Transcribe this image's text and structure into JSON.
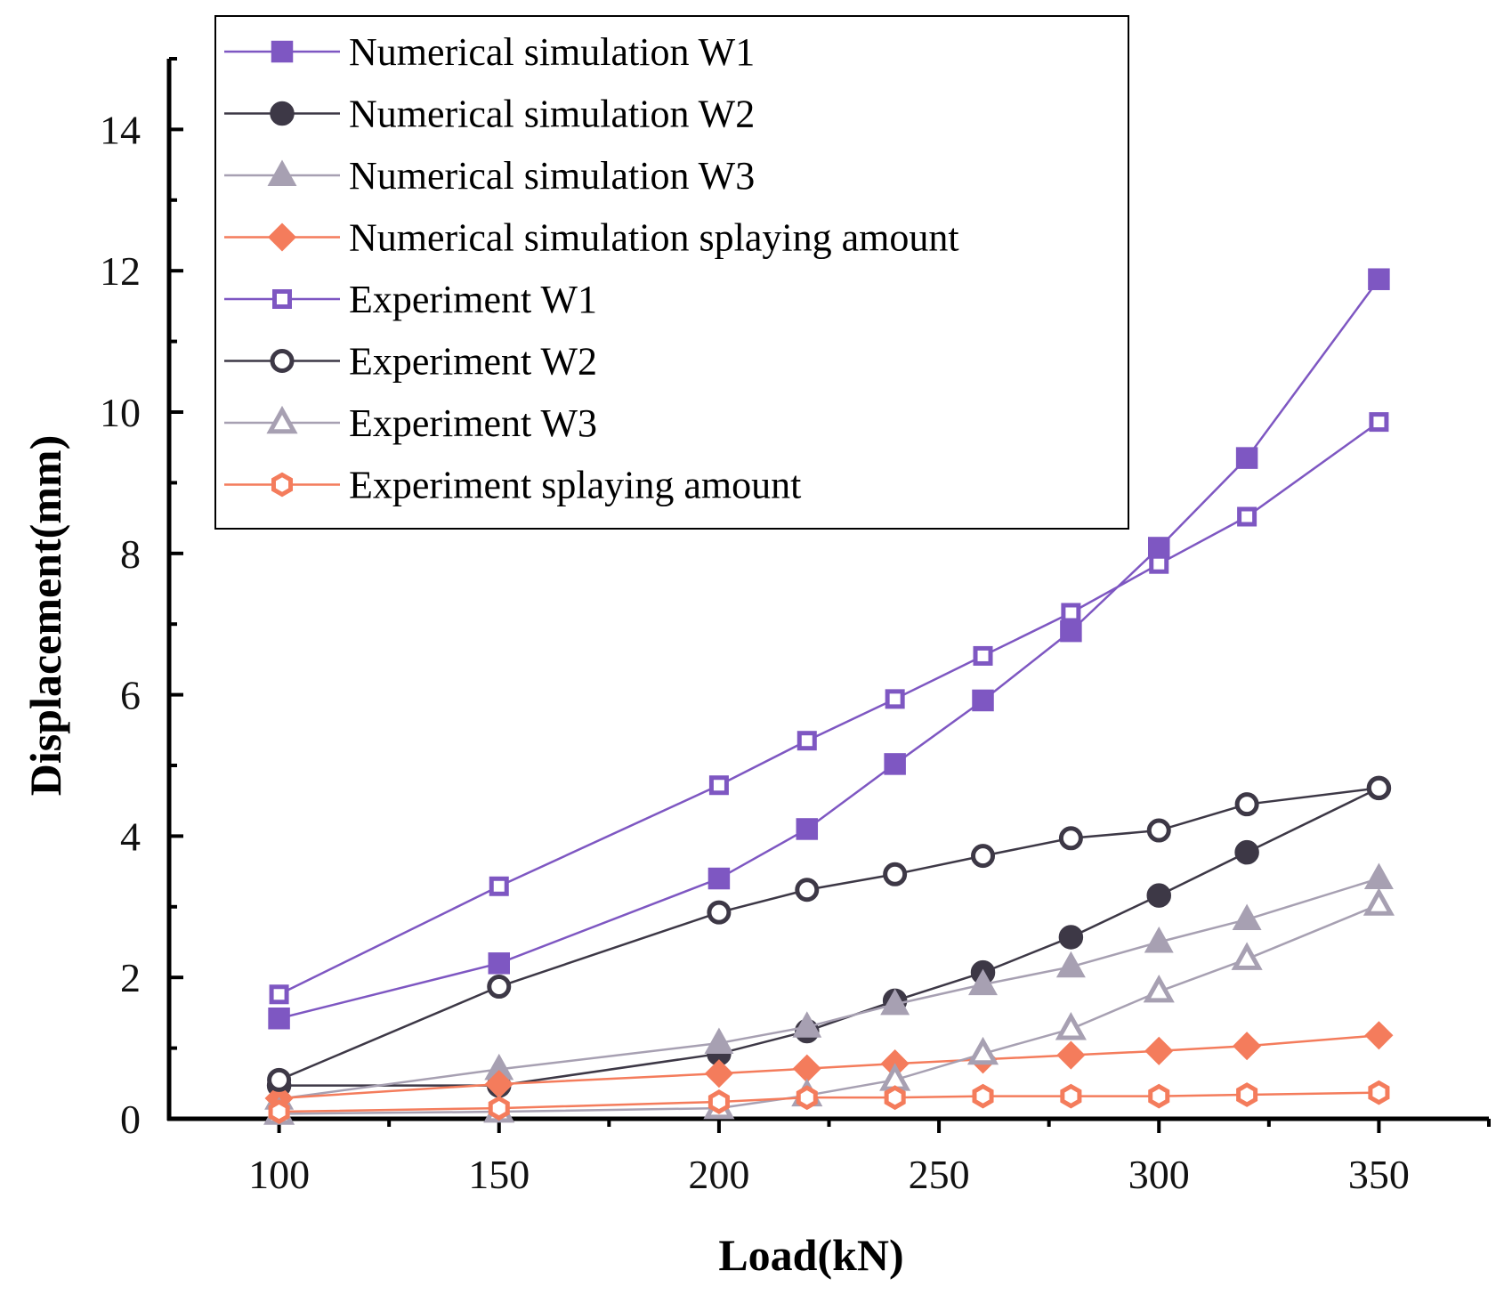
{
  "chart_data": {
    "type": "line",
    "xlabel": "Load(kN)",
    "ylabel": "Displacement(mm)",
    "xlim": [
      75,
      375
    ],
    "ylim": [
      0,
      15
    ],
    "xticks": [
      100,
      150,
      200,
      250,
      300,
      350
    ],
    "xtick_labels": [
      "100",
      "150",
      "200",
      "250",
      "300",
      "350"
    ],
    "yticks": [
      0,
      2,
      4,
      6,
      8,
      10,
      12,
      14
    ],
    "ytick_labels": [
      "0",
      "2",
      "4",
      "6",
      "8",
      "10",
      "12",
      "14"
    ],
    "x": [
      100,
      150,
      200,
      220,
      240,
      260,
      280,
      300,
      320,
      350
    ],
    "legend_position": "top-left",
    "series": [
      {
        "name": "Numerical simulation W1",
        "color": "#7e57c2",
        "marker": "square",
        "filled": true,
        "values": [
          1.42,
          2.2,
          3.4,
          4.1,
          5.02,
          5.92,
          6.9,
          8.08,
          9.35,
          11.88
        ]
      },
      {
        "name": "Numerical simulation W2",
        "color": "#3d3846",
        "marker": "circle",
        "filled": true,
        "values": [
          0.47,
          0.47,
          0.92,
          1.24,
          1.67,
          2.07,
          2.57,
          3.16,
          3.77,
          4.68
        ]
      },
      {
        "name": "Numerical simulation W3",
        "color": "#a7a0b2",
        "marker": "triangle",
        "filled": true,
        "values": [
          0.28,
          0.7,
          1.07,
          1.3,
          1.62,
          1.9,
          2.15,
          2.5,
          2.82,
          3.4
        ]
      },
      {
        "name": "Numerical simulation splaying amount",
        "color": "#f47c5c",
        "marker": "diamond",
        "filled": true,
        "values": [
          0.29,
          0.49,
          0.64,
          0.71,
          0.78,
          0.84,
          0.9,
          0.96,
          1.03,
          1.18
        ]
      },
      {
        "name": "Experiment W1",
        "color": "#7e57c2",
        "marker": "square",
        "filled": false,
        "values": [
          1.76,
          3.29,
          4.72,
          5.35,
          5.94,
          6.55,
          7.16,
          7.85,
          8.52,
          9.86
        ]
      },
      {
        "name": "Experiment W2",
        "color": "#3d3846",
        "marker": "circle",
        "filled": false,
        "values": [
          0.55,
          1.87,
          2.92,
          3.24,
          3.46,
          3.72,
          3.97,
          4.08,
          4.45,
          4.68
        ]
      },
      {
        "name": "Experiment W3",
        "color": "#a7a0b2",
        "marker": "triangle",
        "filled": false,
        "values": [
          0.07,
          0.1,
          0.15,
          0.33,
          0.55,
          0.92,
          1.27,
          1.8,
          2.26,
          3.03
        ]
      },
      {
        "name": "Experiment splaying amount",
        "color": "#f47c5c",
        "marker": "hexagon",
        "filled": false,
        "values": [
          0.1,
          0.15,
          0.24,
          0.3,
          0.3,
          0.32,
          0.32,
          0.32,
          0.34,
          0.37
        ]
      }
    ]
  }
}
